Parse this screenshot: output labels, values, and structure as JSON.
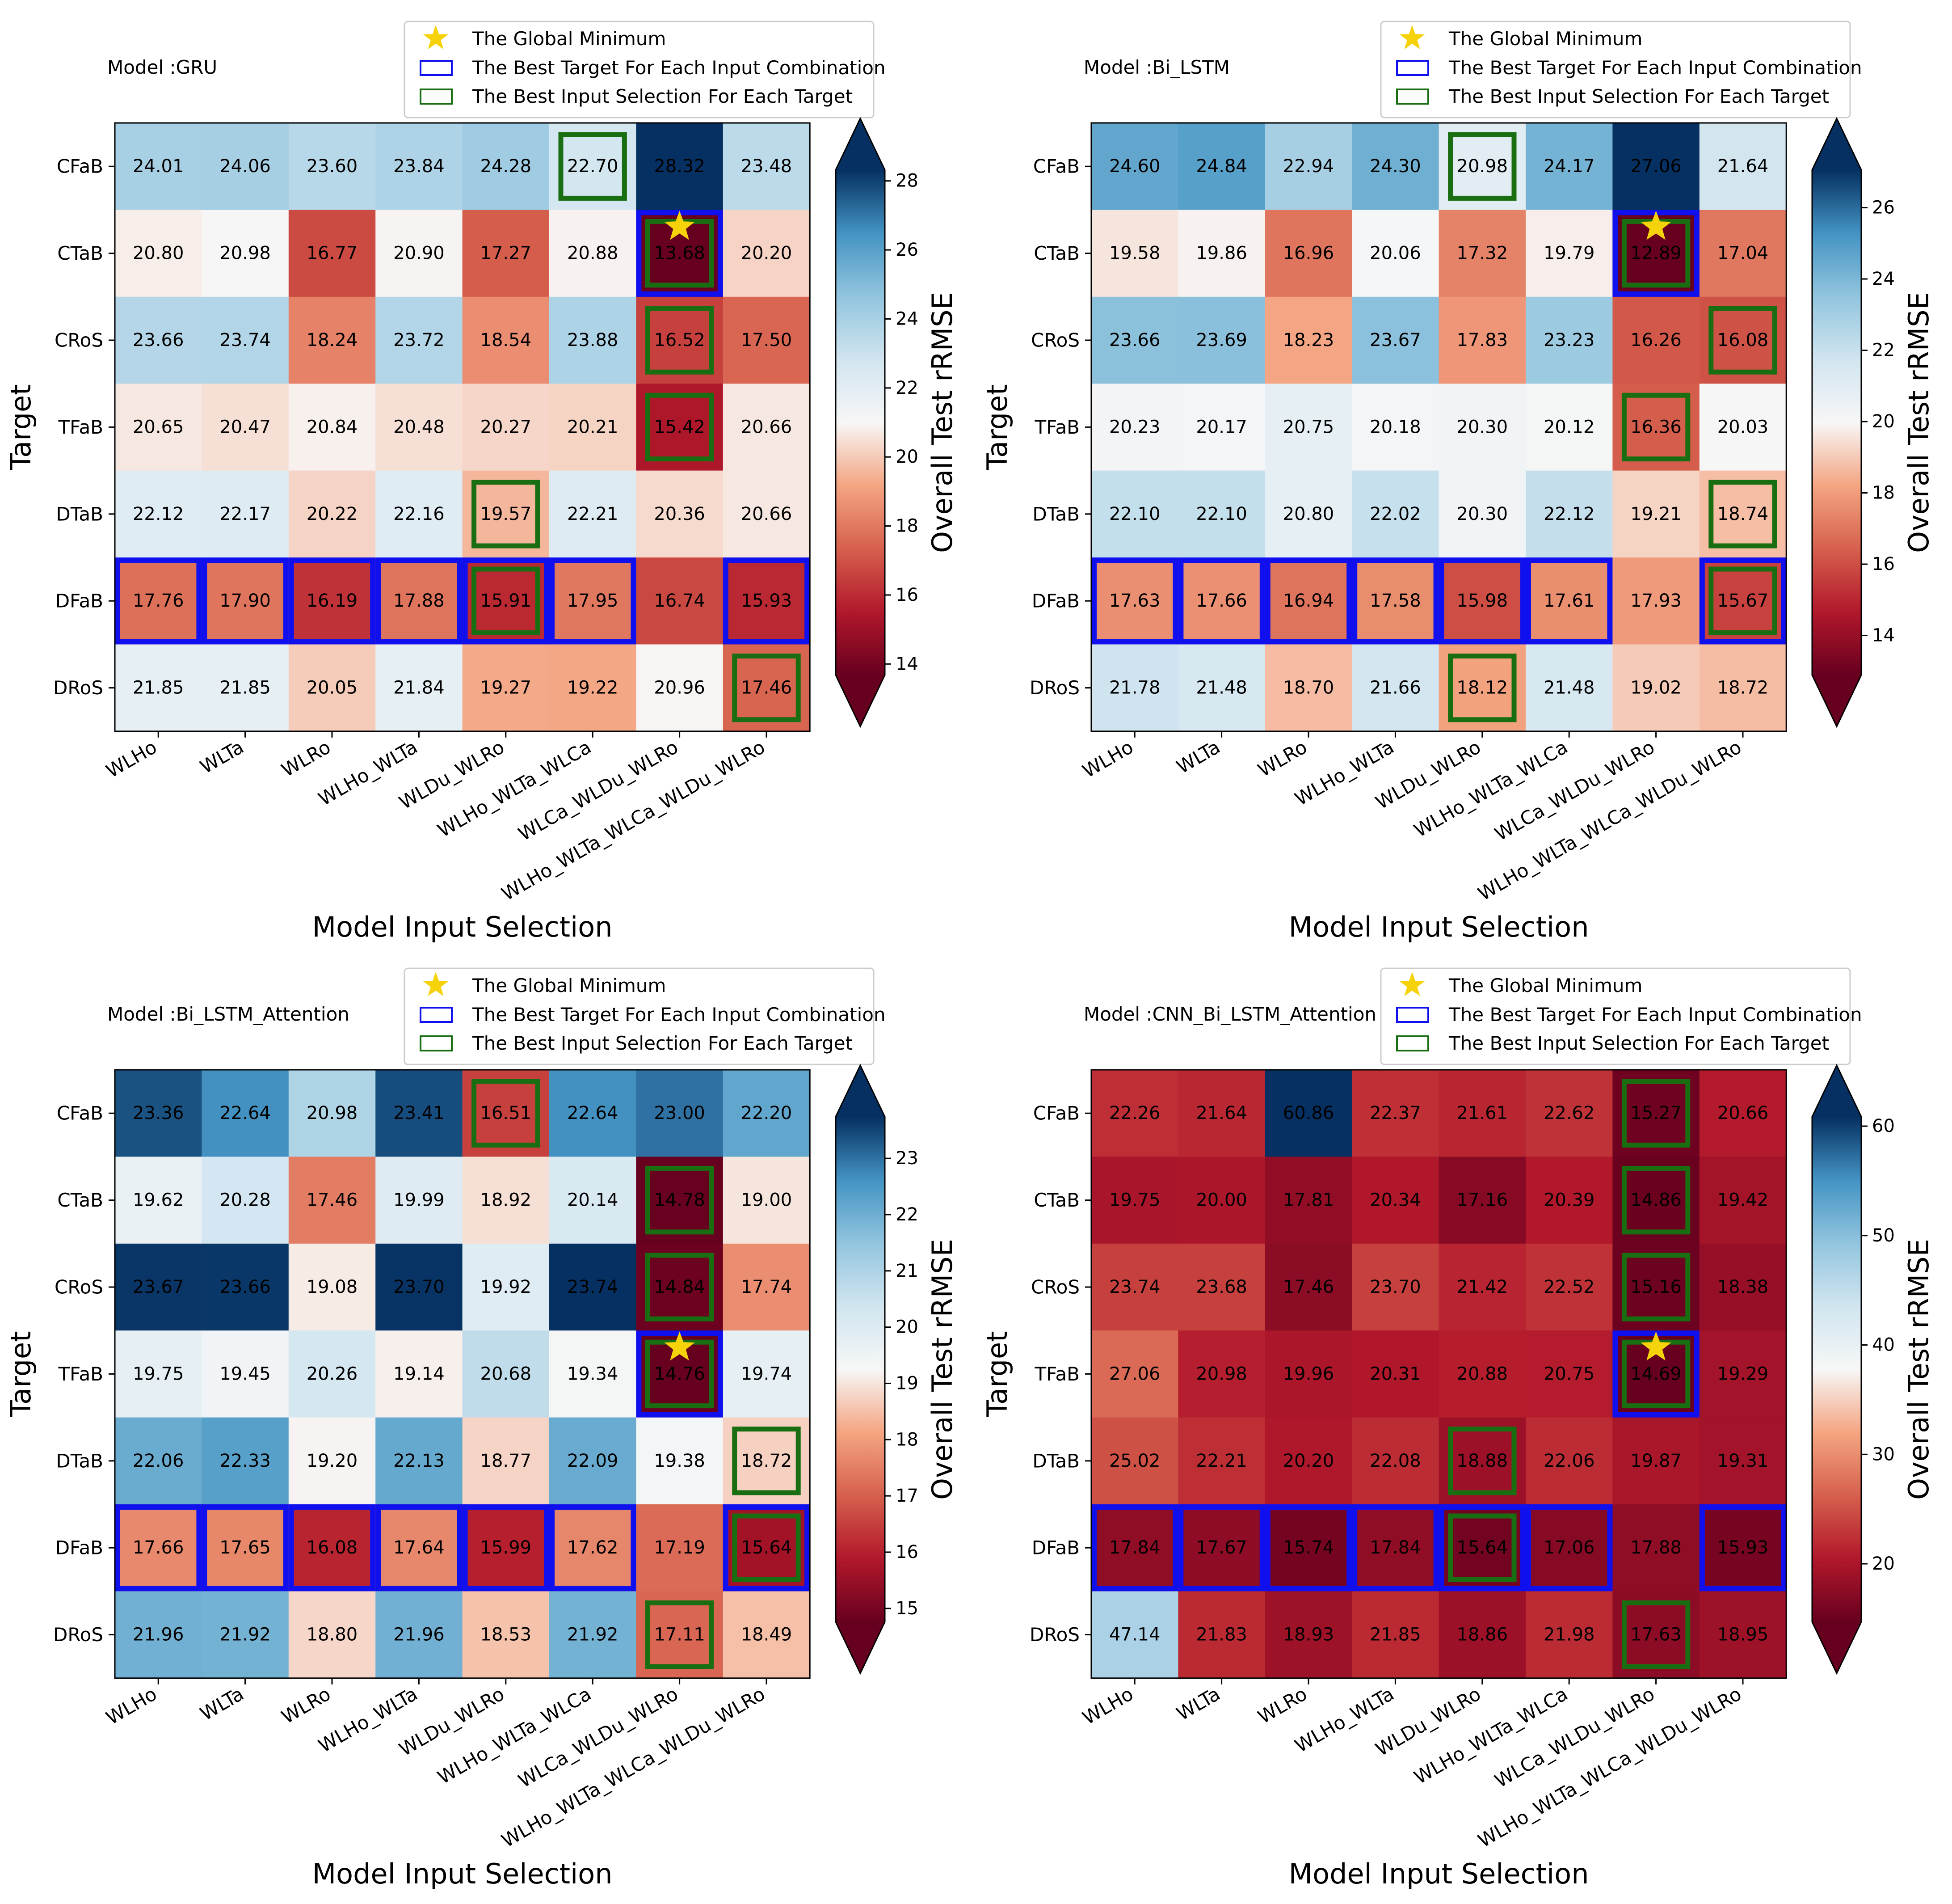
{
  "figure": {
    "legend": {
      "global_min_label": "The Global Minimum",
      "best_target_label": "The Best Target For Each Input Combination",
      "best_input_label": "The Best Input Selection For Each Target"
    },
    "x_axis_label": "Model Input Selection",
    "y_axis_label": "Target",
    "colorbar_label": "Overall Test rRMSE",
    "star_color": "#f5d20a",
    "best_target_color": "#1010ee",
    "best_input_color": "#1a6e12",
    "colormap": "RdBu"
  },
  "chart_data": [
    {
      "type": "heatmap",
      "title": "Model :GRU",
      "xlabel": "Model Input Selection",
      "ylabel": "Target",
      "x_categories": [
        "WLHo",
        "WLTa",
        "WLRo",
        "WLHo_WLTa",
        "WLDu_WLRo",
        "WLHo_WLTa_WLCa",
        "WLCa_WLDu_WLRo",
        "WLHo_WLTa_WLCa_WLDu_WLRo"
      ],
      "y_categories": [
        "CFaB",
        "CTaB",
        "CRoS",
        "TFaB",
        "DTaB",
        "DFaB",
        "DRoS"
      ],
      "values": [
        [
          24.01,
          24.06,
          23.6,
          23.84,
          24.28,
          22.7,
          28.32,
          23.48
        ],
        [
          20.8,
          20.98,
          16.77,
          20.9,
          17.27,
          20.88,
          13.68,
          20.2
        ],
        [
          23.66,
          23.74,
          18.24,
          23.72,
          18.54,
          23.88,
          16.52,
          17.5
        ],
        [
          20.65,
          20.47,
          20.84,
          20.48,
          20.27,
          20.21,
          15.42,
          20.66
        ],
        [
          22.12,
          22.17,
          20.22,
          22.16,
          19.57,
          22.21,
          20.36,
          20.66
        ],
        [
          17.76,
          17.9,
          16.19,
          17.88,
          15.91,
          17.95,
          16.74,
          15.93
        ],
        [
          21.85,
          21.85,
          20.05,
          21.84,
          19.27,
          19.22,
          20.96,
          17.46
        ]
      ],
      "vmin": 13.68,
      "vmax": 28.32,
      "colorbar_ticks": [
        14,
        16,
        18,
        20,
        22,
        24,
        26,
        28
      ],
      "colorbar_label": "Overall Test rRMSE",
      "global_minimum": [
        1,
        6
      ],
      "best_target_per_input": [
        [
          5,
          0
        ],
        [
          5,
          1
        ],
        [
          5,
          2
        ],
        [
          5,
          3
        ],
        [
          5,
          4
        ],
        [
          5,
          5
        ],
        [
          1,
          6
        ],
        [
          5,
          7
        ]
      ],
      "best_input_per_target": [
        [
          0,
          5
        ],
        [
          1,
          6
        ],
        [
          2,
          6
        ],
        [
          3,
          6
        ],
        [
          4,
          4
        ],
        [
          5,
          4
        ],
        [
          6,
          7
        ]
      ],
      "tick_labels_x": [
        "WLHo",
        "WLTa",
        "WLRo",
        "WLHo_WLTa",
        "WLDu_WLRo",
        "WLHo_WLTa_WLCa",
        "WLCa_WLDu_WLRo",
        "WLHo_WLTa_WLCa_WLDu_WLRo"
      ],
      "tick_labels_y": [
        "CFaB",
        "CTaB",
        "CRoS",
        "TFaB",
        "DTaB",
        "DFaB",
        "DRoS"
      ]
    },
    {
      "type": "heatmap",
      "title": "Model :Bi_LSTM",
      "xlabel": "Model Input Selection",
      "ylabel": "Target",
      "x_categories": [
        "WLHo",
        "WLTa",
        "WLRo",
        "WLHo_WLTa",
        "WLDu_WLRo",
        "WLHo_WLTa_WLCa",
        "WLCa_WLDu_WLRo",
        "WLHo_WLTa_WLCa_WLDu_WLRo"
      ],
      "y_categories": [
        "CFaB",
        "CTaB",
        "CRoS",
        "TFaB",
        "DTaB",
        "DFaB",
        "DRoS"
      ],
      "values": [
        [
          24.6,
          24.84,
          22.94,
          24.3,
          20.98,
          24.17,
          27.06,
          21.64
        ],
        [
          19.58,
          19.86,
          16.96,
          20.06,
          17.32,
          19.79,
          12.89,
          17.04
        ],
        [
          23.66,
          23.69,
          18.23,
          23.67,
          17.83,
          23.23,
          16.26,
          16.08
        ],
        [
          20.23,
          20.17,
          20.75,
          20.18,
          20.3,
          20.12,
          16.36,
          20.03
        ],
        [
          22.1,
          22.1,
          20.8,
          22.02,
          20.3,
          22.12,
          19.21,
          18.74
        ],
        [
          17.63,
          17.66,
          16.94,
          17.58,
          15.98,
          17.61,
          17.93,
          15.67
        ],
        [
          21.78,
          21.48,
          18.7,
          21.66,
          18.12,
          21.48,
          19.02,
          18.72
        ]
      ],
      "vmin": 12.89,
      "vmax": 27.06,
      "colorbar_ticks": [
        14,
        16,
        18,
        20,
        22,
        24,
        26
      ],
      "colorbar_label": "Overall Test rRMSE",
      "global_minimum": [
        1,
        6
      ],
      "best_target_per_input": [
        [
          5,
          0
        ],
        [
          5,
          1
        ],
        [
          5,
          2
        ],
        [
          5,
          3
        ],
        [
          5,
          4
        ],
        [
          5,
          5
        ],
        [
          1,
          6
        ],
        [
          5,
          7
        ]
      ],
      "best_input_per_target": [
        [
          0,
          4
        ],
        [
          1,
          6
        ],
        [
          2,
          7
        ],
        [
          3,
          6
        ],
        [
          4,
          7
        ],
        [
          5,
          7
        ],
        [
          6,
          4
        ]
      ],
      "tick_labels_x": [
        "WLHo",
        "WLTa",
        "WLRo",
        "WLHo_WLTa",
        "WLDu_WLRo",
        "WLHo_WLTa_WLCa",
        "WLCa_WLDu_WLRo",
        "WLHo_WLTa_WLCa_WLDu_WLRo"
      ],
      "tick_labels_y": [
        "CFaB",
        "CTaB",
        "CRoS",
        "TFaB",
        "DTaB",
        "DFaB",
        "DRoS"
      ]
    },
    {
      "type": "heatmap",
      "title": "Model :Bi_LSTM_Attention",
      "xlabel": "Model Input Selection",
      "ylabel": "Target",
      "x_categories": [
        "WLHo",
        "WLTa",
        "WLRo",
        "WLHo_WLTa",
        "WLDu_WLRo",
        "WLHo_WLTa_WLCa",
        "WLCa_WLDu_WLRo",
        "WLHo_WLTa_WLCa_WLDu_WLRo"
      ],
      "y_categories": [
        "CFaB",
        "CTaB",
        "CRoS",
        "TFaB",
        "DTaB",
        "DFaB",
        "DRoS"
      ],
      "values": [
        [
          23.36,
          22.64,
          20.98,
          23.41,
          16.51,
          22.64,
          23.0,
          22.2
        ],
        [
          19.62,
          20.28,
          17.46,
          19.99,
          18.92,
          20.14,
          14.78,
          19.0
        ],
        [
          23.67,
          23.66,
          19.08,
          23.7,
          19.92,
          23.74,
          14.84,
          17.74
        ],
        [
          19.75,
          19.45,
          20.26,
          19.14,
          20.68,
          19.34,
          14.76,
          19.74
        ],
        [
          22.06,
          22.33,
          19.2,
          22.13,
          18.77,
          22.09,
          19.38,
          18.72
        ],
        [
          17.66,
          17.65,
          16.08,
          17.64,
          15.99,
          17.62,
          17.19,
          15.64
        ],
        [
          21.96,
          21.92,
          18.8,
          21.96,
          18.53,
          21.92,
          17.11,
          18.49
        ]
      ],
      "vmin": 14.76,
      "vmax": 23.74,
      "colorbar_ticks": [
        15,
        16,
        17,
        18,
        19,
        20,
        21,
        22,
        23
      ],
      "colorbar_label": "Overall Test rRMSE",
      "global_minimum": [
        3,
        6
      ],
      "best_target_per_input": [
        [
          5,
          0
        ],
        [
          5,
          1
        ],
        [
          5,
          2
        ],
        [
          5,
          3
        ],
        [
          5,
          4
        ],
        [
          5,
          5
        ],
        [
          3,
          6
        ],
        [
          5,
          7
        ]
      ],
      "best_input_per_target": [
        [
          0,
          4
        ],
        [
          1,
          6
        ],
        [
          2,
          6
        ],
        [
          3,
          6
        ],
        [
          4,
          7
        ],
        [
          5,
          7
        ],
        [
          6,
          6
        ]
      ],
      "tick_labels_x": [
        "WLHo",
        "WLTa",
        "WLRo",
        "WLHo_WLTa",
        "WLDu_WLRo",
        "WLHo_WLTa_WLCa",
        "WLCa_WLDu_WLRo",
        "WLHo_WLTa_WLCa_WLDu_WLRo"
      ],
      "tick_labels_y": [
        "CFaB",
        "CTaB",
        "CRoS",
        "TFaB",
        "DTaB",
        "DFaB",
        "DRoS"
      ]
    },
    {
      "type": "heatmap",
      "title": "Model :CNN_Bi_LSTM_Attention",
      "xlabel": "Model Input Selection",
      "ylabel": "Target",
      "x_categories": [
        "WLHo",
        "WLTa",
        "WLRo",
        "WLHo_WLTa",
        "WLDu_WLRo",
        "WLHo_WLTa_WLCa",
        "WLCa_WLDu_WLRo",
        "WLHo_WLTa_WLCa_WLDu_WLRo"
      ],
      "y_categories": [
        "CFaB",
        "CTaB",
        "CRoS",
        "TFaB",
        "DTaB",
        "DFaB",
        "DRoS"
      ],
      "values": [
        [
          22.26,
          21.64,
          60.86,
          22.37,
          21.61,
          22.62,
          15.27,
          20.66
        ],
        [
          19.75,
          20.0,
          17.81,
          20.34,
          17.16,
          20.39,
          14.86,
          19.42
        ],
        [
          23.74,
          23.68,
          17.46,
          23.7,
          21.42,
          22.52,
          15.16,
          18.38
        ],
        [
          27.06,
          20.98,
          19.96,
          20.31,
          20.88,
          20.75,
          14.69,
          19.29
        ],
        [
          25.02,
          22.21,
          20.2,
          22.08,
          18.88,
          22.06,
          19.87,
          19.31
        ],
        [
          17.84,
          17.67,
          15.74,
          17.84,
          15.64,
          17.06,
          17.88,
          15.93
        ],
        [
          47.14,
          21.83,
          18.93,
          21.85,
          18.86,
          21.98,
          17.63,
          18.95
        ]
      ],
      "vmin": 14.69,
      "vmax": 60.86,
      "colorbar_ticks": [
        20,
        30,
        40,
        50,
        60
      ],
      "colorbar_label": "Overall Test rRMSE",
      "global_minimum": [
        3,
        6
      ],
      "best_target_per_input": [
        [
          5,
          0
        ],
        [
          5,
          1
        ],
        [
          5,
          2
        ],
        [
          5,
          3
        ],
        [
          5,
          4
        ],
        [
          5,
          5
        ],
        [
          3,
          6
        ],
        [
          5,
          7
        ]
      ],
      "best_input_per_target": [
        [
          0,
          6
        ],
        [
          1,
          6
        ],
        [
          2,
          6
        ],
        [
          3,
          6
        ],
        [
          4,
          4
        ],
        [
          5,
          4
        ],
        [
          6,
          6
        ]
      ],
      "tick_labels_x": [
        "WLHo",
        "WLTa",
        "WLRo",
        "WLHo_WLTa",
        "WLDu_WLRo",
        "WLHo_WLTa_WLCa",
        "WLCa_WLDu_WLRo",
        "WLHo_WLTa_WLCa_WLDu_WLRo"
      ],
      "tick_labels_y": [
        "CFaB",
        "CTaB",
        "CRoS",
        "TFaB",
        "DTaB",
        "DFaB",
        "DRoS"
      ]
    }
  ]
}
